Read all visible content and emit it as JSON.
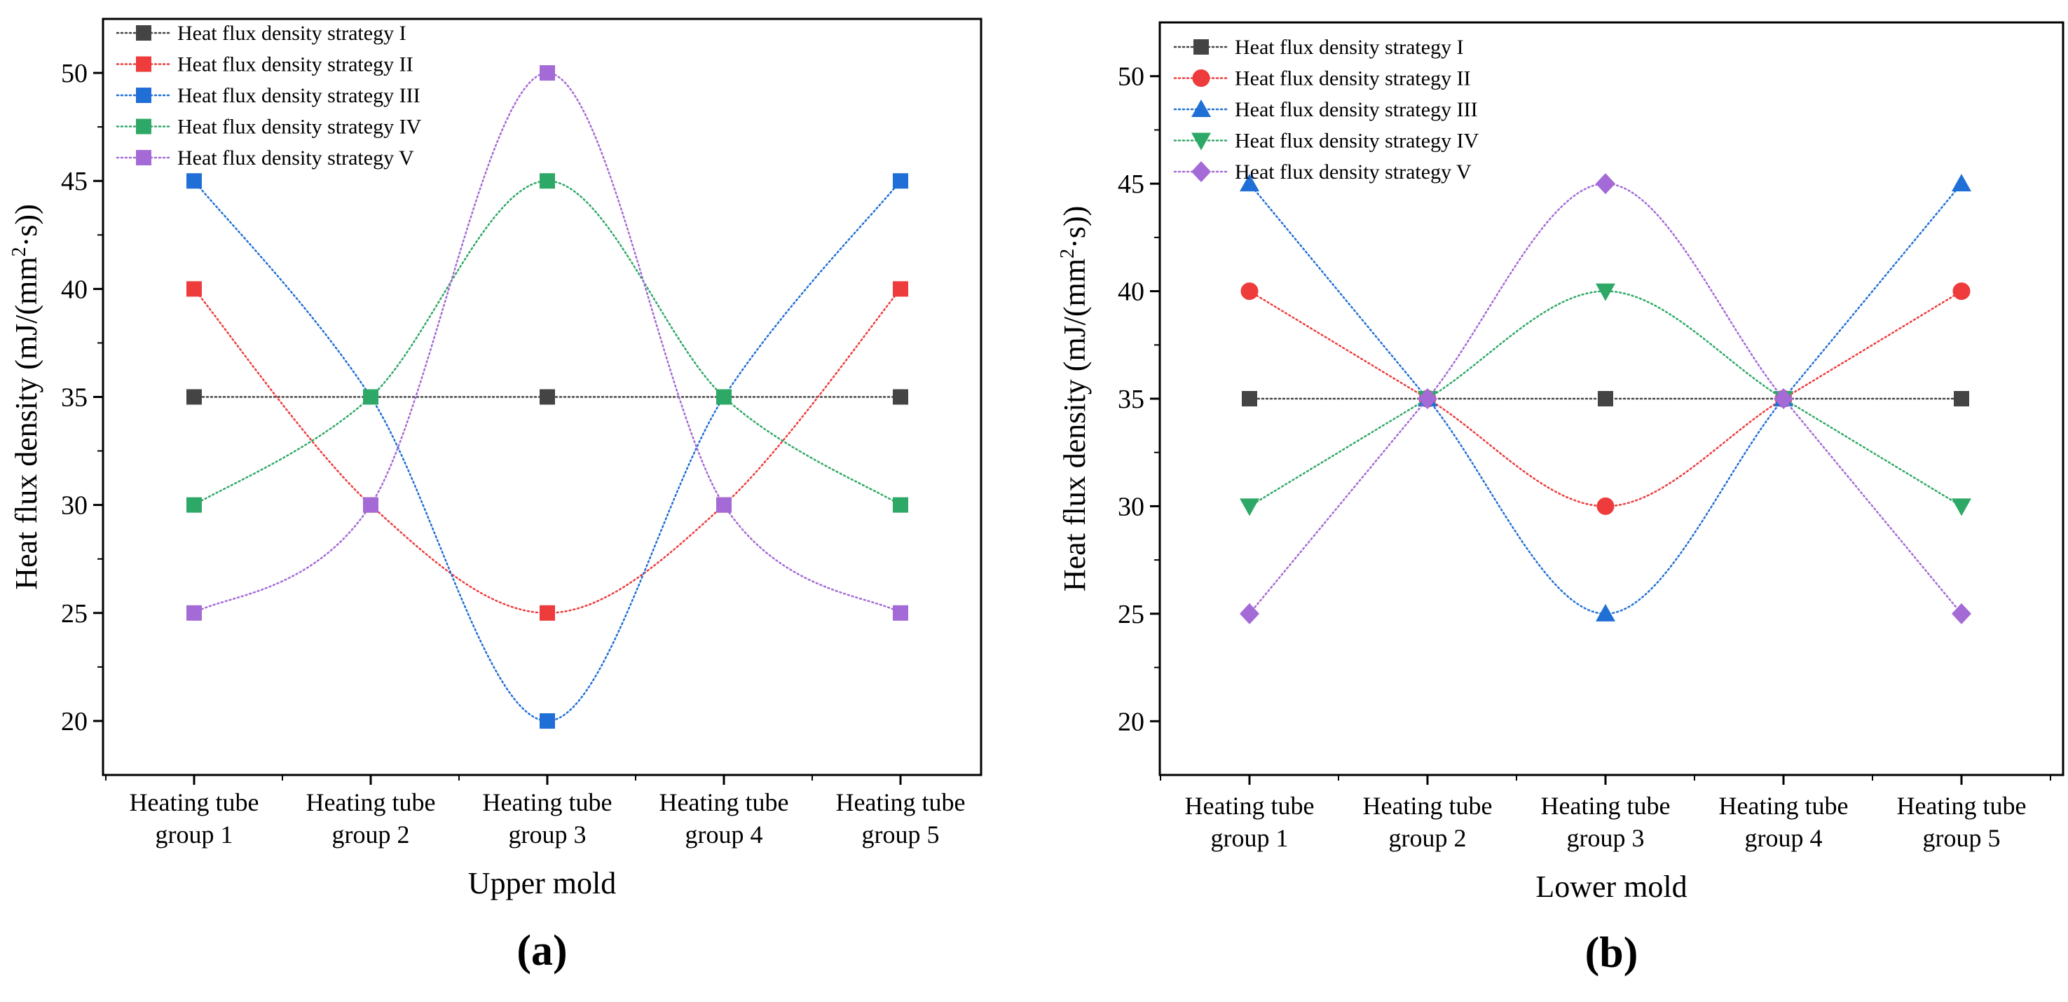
{
  "chart_data": [
    {
      "type": "line",
      "panel_label": "(a)",
      "xlabel": "Upper mold",
      "ylabel_main": "Heat flux density (mJ/(mm",
      "ylabel_sup": "2",
      "ylabel_tail": "·s))",
      "ylim": [
        17.5,
        52.5
      ],
      "yticks": [
        20,
        25,
        30,
        35,
        40,
        45,
        50
      ],
      "categories": [
        [
          "Heating tube",
          "group 1"
        ],
        [
          "Heating tube",
          "group 2"
        ],
        [
          "Heating tube",
          "group 3"
        ],
        [
          "Heating tube",
          "group 4"
        ],
        [
          "Heating tube",
          "group 5"
        ]
      ],
      "legend_position": "top-left",
      "series": [
        {
          "name": "Heat flux density strategy I",
          "color": "#444444",
          "marker": "square",
          "values": [
            35,
            35,
            35,
            35,
            35
          ]
        },
        {
          "name": "Heat flux density strategy II",
          "color": "#ee3b3b",
          "marker": "square",
          "values": [
            40,
            30,
            25,
            30,
            40
          ]
        },
        {
          "name": "Heat flux density strategy III",
          "color": "#1f6fd6",
          "marker": "square",
          "values": [
            45,
            35,
            20,
            35,
            45
          ]
        },
        {
          "name": "Heat flux density strategy IV",
          "color": "#2ea866",
          "marker": "square",
          "values": [
            30,
            35,
            45,
            35,
            30
          ]
        },
        {
          "name": "Heat flux density strategy V",
          "color": "#a46ad6",
          "marker": "square",
          "values": [
            25,
            30,
            50,
            30,
            25
          ]
        }
      ]
    },
    {
      "type": "line",
      "panel_label": "(b)",
      "xlabel": "Lower mold",
      "ylabel_main": "Heat flux density (mJ/(mm",
      "ylabel_sup": "2",
      "ylabel_tail": "·s))",
      "ylim": [
        17.5,
        52.5
      ],
      "yticks": [
        20,
        25,
        30,
        35,
        40,
        45,
        50
      ],
      "categories": [
        [
          "Heating tube",
          "group 1"
        ],
        [
          "Heating tube",
          "group 2"
        ],
        [
          "Heating tube",
          "group 3"
        ],
        [
          "Heating tube",
          "group 4"
        ],
        [
          "Heating tube",
          "group 5"
        ]
      ],
      "legend_position": "top-left",
      "series": [
        {
          "name": "Heat flux density strategy I",
          "color": "#444444",
          "marker": "square",
          "values": [
            35,
            35,
            35,
            35,
            35
          ]
        },
        {
          "name": "Heat flux density strategy II",
          "color": "#ee3b3b",
          "marker": "circle",
          "values": [
            40,
            35,
            30,
            35,
            40
          ]
        },
        {
          "name": "Heat flux density strategy III",
          "color": "#1f6fd6",
          "marker": "triangle-up",
          "values": [
            45,
            35,
            25,
            35,
            45
          ]
        },
        {
          "name": "Heat flux density strategy IV",
          "color": "#2ea866",
          "marker": "triangle-down",
          "values": [
            30,
            35,
            40,
            35,
            30
          ]
        },
        {
          "name": "Heat flux density strategy V",
          "color": "#a46ad6",
          "marker": "diamond",
          "values": [
            25,
            35,
            45,
            35,
            25
          ]
        }
      ]
    }
  ]
}
